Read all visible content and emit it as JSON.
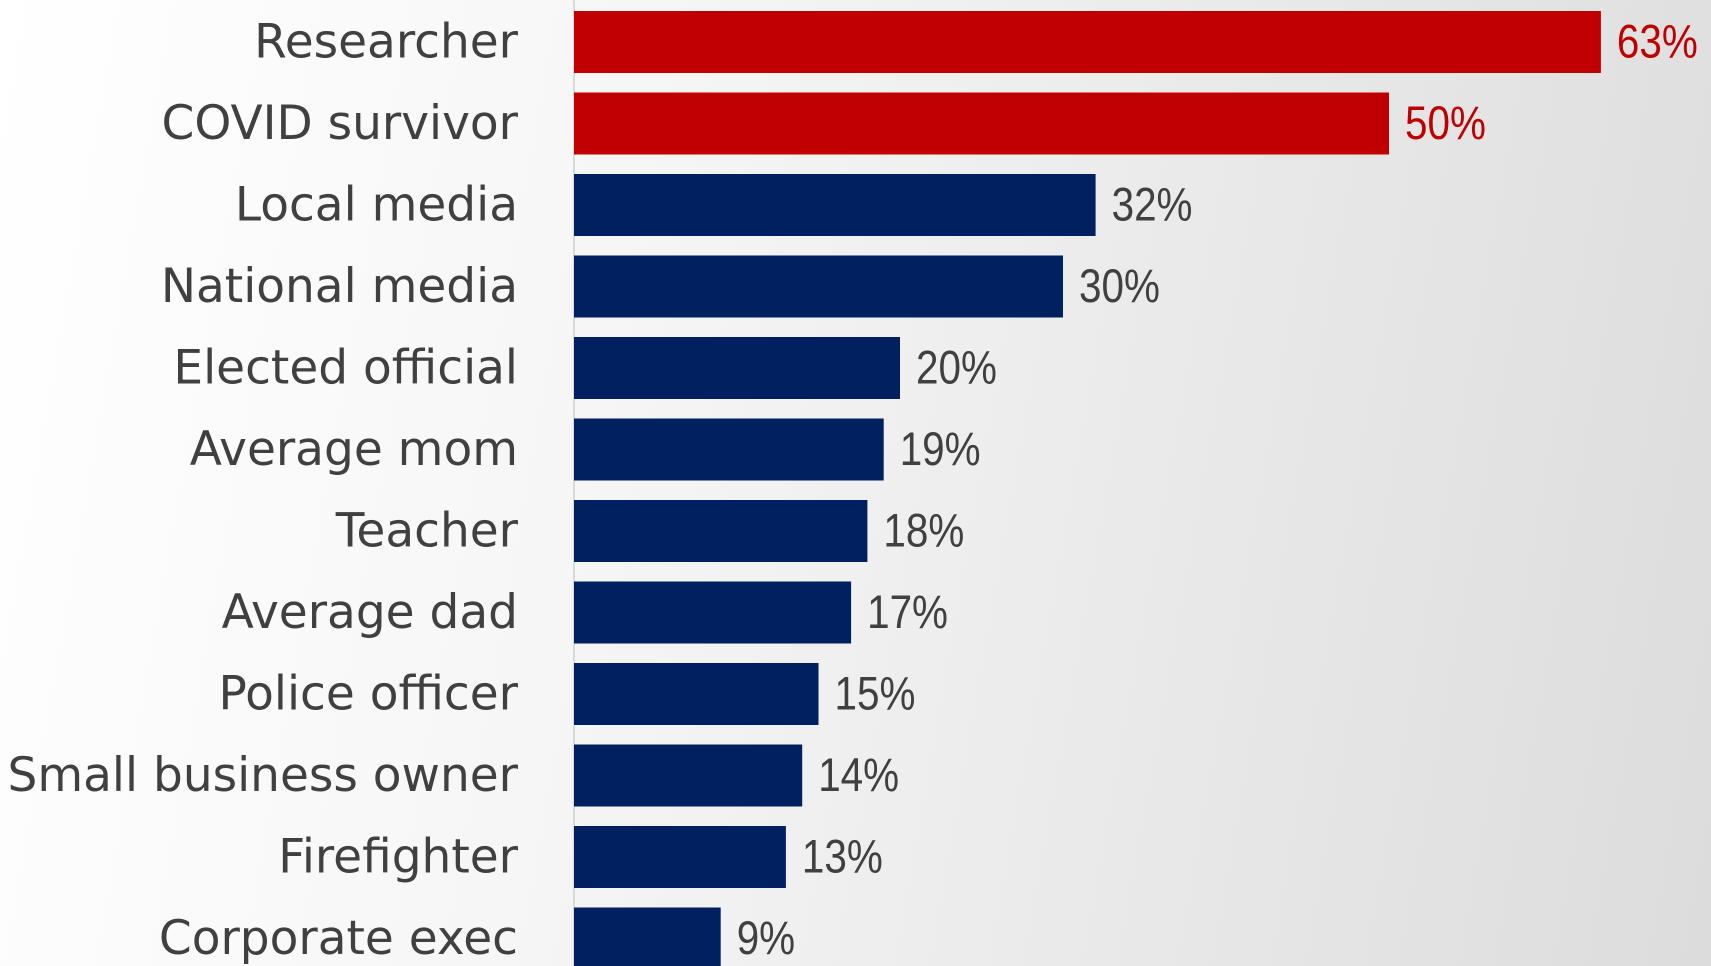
{
  "chart_data": {
    "type": "bar",
    "orientation": "horizontal",
    "categories": [
      "Researcher",
      "COVID survivor",
      "Local media",
      "National media",
      "Elected official",
      "Average mom",
      "Teacher",
      "Average dad",
      "Police officer",
      "Small business owner",
      "Firefighter",
      "Corporate exec"
    ],
    "values": [
      63,
      50,
      32,
      30,
      20,
      19,
      18,
      17,
      15,
      14,
      13,
      9
    ],
    "value_labels": [
      "63%",
      "50%",
      "32%",
      "30%",
      "20%",
      "19%",
      "18%",
      "17%",
      "15%",
      "14%",
      "13%",
      "9%"
    ],
    "unit": "%",
    "highlighted_categories": [
      "Researcher",
      "COVID survivor"
    ],
    "colors": {
      "highlight": "#c00000",
      "default": "#002060",
      "category_text": "#404040",
      "default_value_text": "#404040",
      "highlight_value_text": "#c00000"
    },
    "xlim": [
      0,
      63
    ],
    "grid": false,
    "legend": "none"
  }
}
